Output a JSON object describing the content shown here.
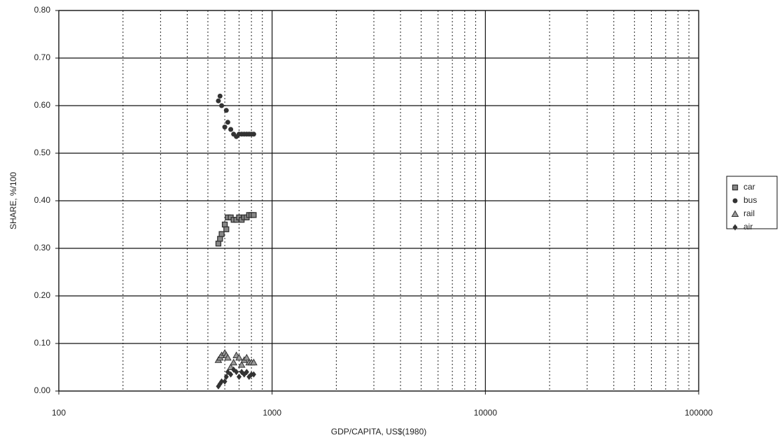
{
  "chart_data": {
    "type": "scatter",
    "x_label": "GDP/CAPITA, US$(1980)",
    "y_label": "SHARE, %/100",
    "x_scale": "log",
    "grid": true,
    "legend_position": "right",
    "xlim": [
      100,
      100000
    ],
    "xticks": [
      100,
      1000,
      10000,
      100000
    ],
    "ylim": [
      0,
      0.8
    ],
    "yticks": [
      {
        "value": 0,
        "label": "0.00"
      },
      {
        "value": 0.1,
        "label": "0.10"
      },
      {
        "value": 0.2,
        "label": "0.20"
      },
      {
        "value": 0.3,
        "label": "0.30"
      },
      {
        "value": 0.4,
        "label": "0.40"
      },
      {
        "value": 0.5,
        "label": "0.50"
      },
      {
        "value": 0.6,
        "label": "0.60"
      },
      {
        "value": 0.7,
        "label": "0.70"
      },
      {
        "value": 0.8,
        "label": "0.80"
      }
    ],
    "x": [
      560,
      570,
      580,
      600,
      610,
      620,
      640,
      660,
      680,
      700,
      720,
      740,
      760,
      780,
      800,
      820
    ],
    "series": [
      {
        "name": "car",
        "marker": "square",
        "color": "#333333",
        "values": [
          0.31,
          0.32,
          0.33,
          0.35,
          0.34,
          0.365,
          0.365,
          0.36,
          0.36,
          0.365,
          0.36,
          0.365,
          0.365,
          0.37,
          0.37,
          0.37
        ]
      },
      {
        "name": "bus",
        "marker": "circle",
        "color": "#333333",
        "values": [
          0.61,
          0.62,
          0.6,
          0.555,
          0.59,
          0.565,
          0.55,
          0.54,
          0.535,
          0.54,
          0.54,
          0.54,
          0.54,
          0.54,
          0.54,
          0.54
        ]
      },
      {
        "name": "rail",
        "marker": "triangle",
        "color": "#333333",
        "values": [
          0.065,
          0.07,
          0.075,
          0.08,
          0.075,
          0.07,
          0.05,
          0.06,
          0.075,
          0.07,
          0.055,
          0.065,
          0.07,
          0.06,
          0.06,
          0.06
        ]
      },
      {
        "name": "air",
        "marker": "diamond",
        "color": "#333333",
        "values": [
          0.01,
          0.015,
          0.02,
          0.02,
          0.03,
          0.04,
          0.035,
          0.045,
          0.04,
          0.03,
          0.04,
          0.035,
          0.04,
          0.03,
          0.035,
          0.035
        ]
      }
    ]
  }
}
